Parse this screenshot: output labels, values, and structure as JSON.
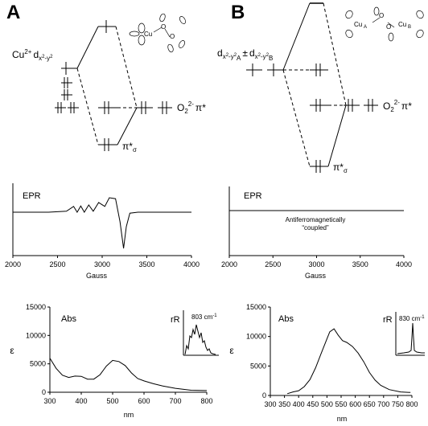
{
  "panels": {
    "a_letter": "A",
    "b_letter": "B"
  },
  "mo_diagram_a": {
    "cu_label_main": "Cu",
    "cu_label_sup": "2+",
    "cu_label_orb": "d",
    "cu_label_sub": "x",
    "cu_label_sub2": "2",
    "cu_label_sub3": "-y",
    "cu_label_sub4": "2",
    "o2_label": "O",
    "o2_sub": "2",
    "o2_sup": "2-",
    "o2_pi": "π*",
    "pi_sigma": "π*",
    "pi_sigma_sub": "σ",
    "structure_cu": "Cu",
    "structure_o1": "O",
    "structure_o2": "O"
  },
  "mo_diagram_b": {
    "d_label": "d",
    "d_sub_a": "x",
    "d_sub_a2": "2",
    "d_sub_a3": "-y",
    "d_sub_a4": "2",
    "d_sub_a5": "A",
    "d_pm": "±",
    "d_sub_b": "x",
    "d_sub_b2": "2",
    "d_sub_b3": "-y",
    "d_sub_b4": "2",
    "d_sub_b5": "B",
    "o2_label": "O",
    "o2_sub": "2",
    "o2_sup": "2-",
    "o2_pi": "π*",
    "pi_sigma": "π*",
    "pi_sigma_sub": "σ",
    "structure_cua": "Cu",
    "structure_cua_sub": "A",
    "structure_cub": "Cu",
    "structure_cub_sub": "B",
    "structure_o1": "O",
    "structure_o2": "O"
  },
  "chart_data": [
    {
      "type": "line",
      "title": "EPR",
      "xlabel": "Gauss",
      "ylabel": "",
      "xlim": [
        2000,
        4000
      ],
      "xticks": [
        "2000",
        "2500",
        "3000",
        "3500",
        "4000"
      ],
      "series": [
        {
          "values": [
            [
              2000,
              0.0
            ],
            [
              2400,
              0.0
            ],
            [
              2600,
              0.02
            ],
            [
              2680,
              0.12
            ],
            [
              2720,
              0.0
            ],
            [
              2760,
              0.13
            ],
            [
              2800,
              0.0
            ],
            [
              2850,
              0.15
            ],
            [
              2900,
              0.02
            ],
            [
              2960,
              0.2
            ],
            [
              3030,
              0.12
            ],
            [
              3080,
              0.3
            ],
            [
              3150,
              0.28
            ],
            [
              3200,
              -0.2
            ],
            [
              3240,
              -0.75
            ],
            [
              3270,
              -0.3
            ],
            [
              3310,
              -0.02
            ],
            [
              3400,
              0.0
            ],
            [
              4000,
              0.0
            ]
          ]
        }
      ]
    },
    {
      "type": "line",
      "title": "EPR",
      "annotation_line1": "Antiferromagnetically",
      "annotation_line2": "“coupled”",
      "xlabel": "Gauss",
      "ylabel": "",
      "xlim": [
        2000,
        4000
      ],
      "xticks": [
        "2000",
        "2500",
        "3000",
        "3500",
        "4000"
      ],
      "series": [
        {
          "values": [
            [
              2000,
              0.0
            ],
            [
              4000,
              0.0
            ]
          ]
        }
      ]
    },
    {
      "type": "line",
      "title": "Abs",
      "xlabel": "nm",
      "ylabel": "ε",
      "xlim": [
        300,
        800
      ],
      "ylim": [
        0,
        15000
      ],
      "xticks": [
        "300",
        "400",
        "500",
        "600",
        "700",
        "800"
      ],
      "yticks": [
        "0",
        "5000",
        "10000",
        "15000"
      ],
      "series": [
        {
          "values": [
            [
              300,
              6000
            ],
            [
              320,
              4200
            ],
            [
              340,
              3000
            ],
            [
              360,
              2600
            ],
            [
              380,
              2850
            ],
            [
              400,
              2800
            ],
            [
              420,
              2300
            ],
            [
              440,
              2300
            ],
            [
              460,
              3100
            ],
            [
              480,
              4600
            ],
            [
              500,
              5600
            ],
            [
              520,
              5400
            ],
            [
              540,
              4700
            ],
            [
              560,
              3400
            ],
            [
              580,
              2400
            ],
            [
              600,
              2000
            ],
            [
              630,
              1500
            ],
            [
              660,
              1100
            ],
            [
              700,
              700
            ],
            [
              750,
              350
            ],
            [
              800,
              300
            ]
          ]
        }
      ],
      "inset": {
        "label": "rR",
        "peak_label": "803 cm",
        "peak_sup": "-1"
      }
    },
    {
      "type": "line",
      "title": "Abs",
      "xlabel": "nm",
      "ylabel": "ε",
      "xlim": [
        300,
        800
      ],
      "ylim": [
        0,
        15000
      ],
      "xticks": [
        "300",
        "350",
        "400",
        "450",
        "500",
        "550",
        "600",
        "650",
        "700",
        "750",
        "800"
      ],
      "yticks": [
        "0",
        "5000",
        "10000",
        "15000"
      ],
      "series": [
        {
          "values": [
            [
              360,
              300
            ],
            [
              380,
              600
            ],
            [
              400,
              800
            ],
            [
              420,
              1500
            ],
            [
              440,
              2700
            ],
            [
              460,
              4700
            ],
            [
              480,
              7200
            ],
            [
              500,
              9600
            ],
            [
              510,
              10800
            ],
            [
              525,
              11300
            ],
            [
              540,
              10200
            ],
            [
              555,
              9300
            ],
            [
              570,
              9000
            ],
            [
              590,
              8300
            ],
            [
              610,
              7200
            ],
            [
              630,
              5700
            ],
            [
              650,
              3900
            ],
            [
              670,
              2600
            ],
            [
              690,
              1700
            ],
            [
              720,
              1000
            ],
            [
              760,
              600
            ],
            [
              795,
              500
            ]
          ]
        }
      ],
      "inset": {
        "label": "rR",
        "peak_label": "830 cm",
        "peak_sup": "-1"
      }
    }
  ]
}
